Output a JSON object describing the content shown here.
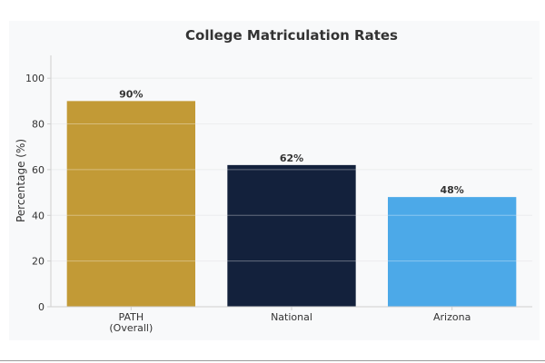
{
  "chart_data": {
    "type": "bar",
    "title": "College Matriculation Rates",
    "xlabel": "",
    "ylabel": "Percentage (%)",
    "ylim": [
      0,
      110
    ],
    "yticks": [
      0,
      20,
      40,
      60,
      80,
      100
    ],
    "grid": true,
    "categories": [
      [
        "PATH",
        "(Overall)"
      ],
      [
        "National"
      ],
      [
        "Arizona"
      ]
    ],
    "values": [
      90,
      62,
      48
    ],
    "data_labels": [
      "90%",
      "62%",
      "48%"
    ],
    "colors": [
      "#c29a36",
      "#13213c",
      "#4ca9e8"
    ]
  }
}
